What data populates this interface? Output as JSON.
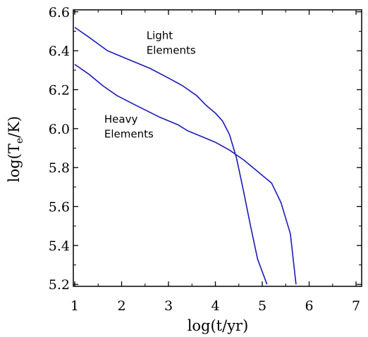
{
  "chart_data": {
    "type": "line",
    "xlabel": "log(t/yr)",
    "ylabel_parts": {
      "pre": "log(T",
      "sub": "e",
      "post": "/K)"
    },
    "xlim": [
      0.97,
      7.12
    ],
    "ylim": [
      5.19,
      6.61
    ],
    "x_ticks": [
      1,
      2,
      3,
      4,
      5,
      6,
      7
    ],
    "x_tick_labels": [
      "1",
      "2",
      "3",
      "4",
      "5",
      "6",
      "7"
    ],
    "y_ticks": [
      5.2,
      5.4,
      5.6,
      5.8,
      6.0,
      6.2,
      6.4,
      6.6
    ],
    "y_tick_labels": [
      "5.2",
      "5.4",
      "5.6",
      "5.8",
      "6.0",
      "6.2",
      "6.4",
      "6.6"
    ],
    "grid": false,
    "line_color": "#1a1ab8",
    "annotations": [
      {
        "lines": [
          "Light",
          "Elements"
        ],
        "x": 2.53,
        "y": 6.46
      },
      {
        "lines": [
          "Heavy",
          "Elements"
        ],
        "x": 1.63,
        "y": 6.03
      }
    ],
    "series": [
      {
        "x": [
          1.0,
          1.3,
          1.7,
          2.2,
          2.6,
          3.0,
          3.3,
          3.6,
          3.8,
          4.0,
          4.15,
          4.3,
          4.45,
          4.6,
          4.75,
          4.9,
          5.1
        ],
        "y": [
          6.52,
          6.47,
          6.4,
          6.35,
          6.31,
          6.26,
          6.22,
          6.17,
          6.12,
          6.08,
          6.04,
          5.97,
          5.85,
          5.68,
          5.5,
          5.33,
          5.2
        ]
      },
      {
        "x": [
          1.0,
          1.3,
          1.6,
          1.9,
          2.3,
          2.8,
          3.2,
          3.4,
          3.7,
          4.0,
          4.3,
          4.6,
          4.85,
          5.0,
          5.2,
          5.4,
          5.6,
          5.72
        ],
        "y": [
          6.33,
          6.28,
          6.22,
          6.17,
          6.12,
          6.06,
          6.02,
          5.99,
          5.96,
          5.93,
          5.89,
          5.84,
          5.79,
          5.76,
          5.72,
          5.62,
          5.46,
          5.2
        ]
      }
    ]
  }
}
